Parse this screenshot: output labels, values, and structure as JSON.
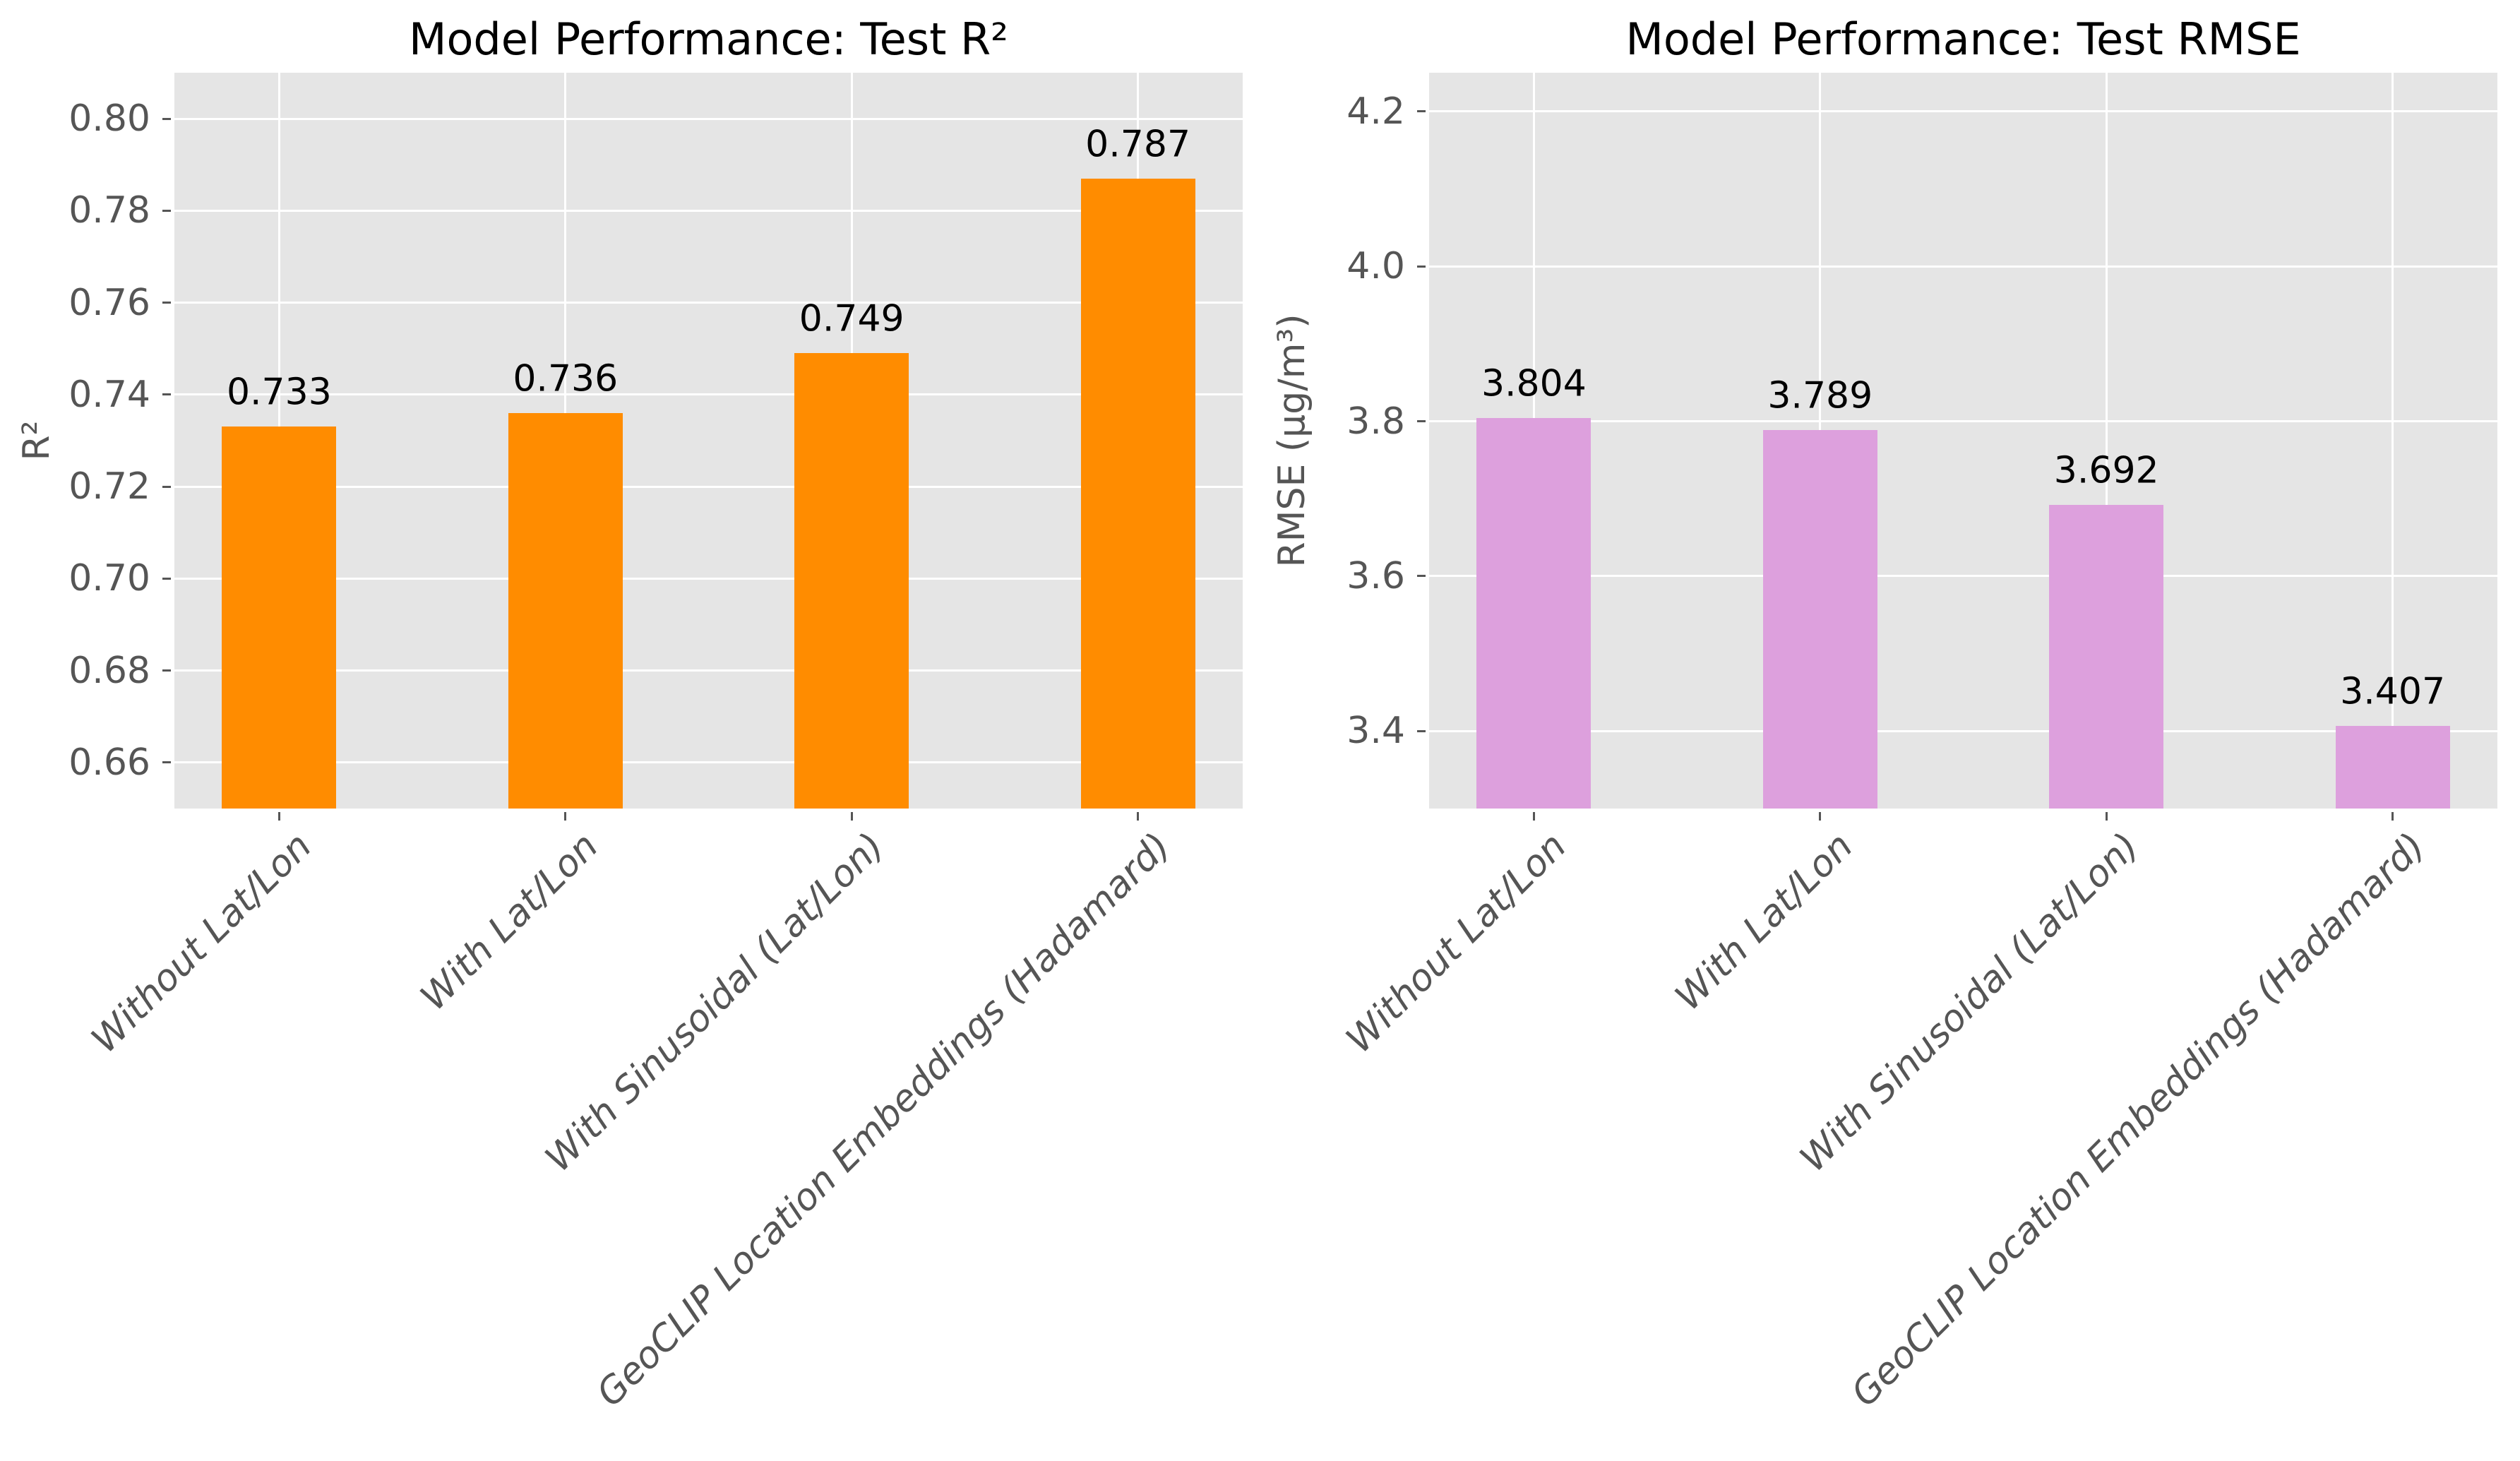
{
  "figure": {
    "background": "#FFFFFF",
    "axes_background": "#E5E5E5",
    "grid_color": "#FFFFFF",
    "tick_color": "#555555",
    "tick_label_color": "#555555",
    "axis_label_color": "#555555",
    "value_label_color": "#000000",
    "title_color": "#000000"
  },
  "chart_data": [
    {
      "type": "bar",
      "title": "Model Performance: Test R²",
      "xlabel": "",
      "ylabel": "R²",
      "categories": [
        "Without Lat/Lon",
        "With Lat/Lon",
        "With Sinusoidal (Lat/Lon)",
        "GeoCLIP Location Embeddings (Hadamard)"
      ],
      "values": [
        0.733,
        0.736,
        0.749,
        0.787
      ],
      "value_labels": [
        "0.733",
        "0.736",
        "0.749",
        "0.787"
      ],
      "bar_color": "#FF8C00",
      "ylim": [
        0.65,
        0.81
      ],
      "yticks": [
        0.8,
        0.78,
        0.76,
        0.74,
        0.72,
        0.7,
        0.68,
        0.66
      ],
      "ytick_labels": [
        "0.80",
        "0.78",
        "0.76",
        "0.74",
        "0.72",
        "0.70",
        "0.68",
        "0.66"
      ],
      "xlim": [
        -0.366,
        3.366
      ],
      "bar_width_units": 0.4,
      "grid": true,
      "legend_position": "none"
    },
    {
      "type": "bar",
      "title": "Model Performance: Test RMSE",
      "xlabel": "",
      "ylabel": "RMSE (µg/m³)",
      "categories": [
        "Without Lat/Lon",
        "With Lat/Lon",
        "With Sinusoidal (Lat/Lon)",
        "GeoCLIP Location Embeddings (Hadamard)"
      ],
      "values": [
        3.804,
        3.789,
        3.692,
        3.407
      ],
      "value_labels": [
        "3.804",
        "3.789",
        "3.692",
        "3.407"
      ],
      "bar_color": "#DDA0DD",
      "ylim": [
        3.3,
        4.25
      ],
      "yticks": [
        4.2,
        4.0,
        3.8,
        3.6,
        3.4
      ],
      "ytick_labels": [
        "4.2",
        "4.0",
        "3.8",
        "3.6",
        "3.4"
      ],
      "xlim": [
        -0.366,
        3.366
      ],
      "bar_width_units": 0.4,
      "grid": true,
      "legend_position": "none"
    }
  ]
}
